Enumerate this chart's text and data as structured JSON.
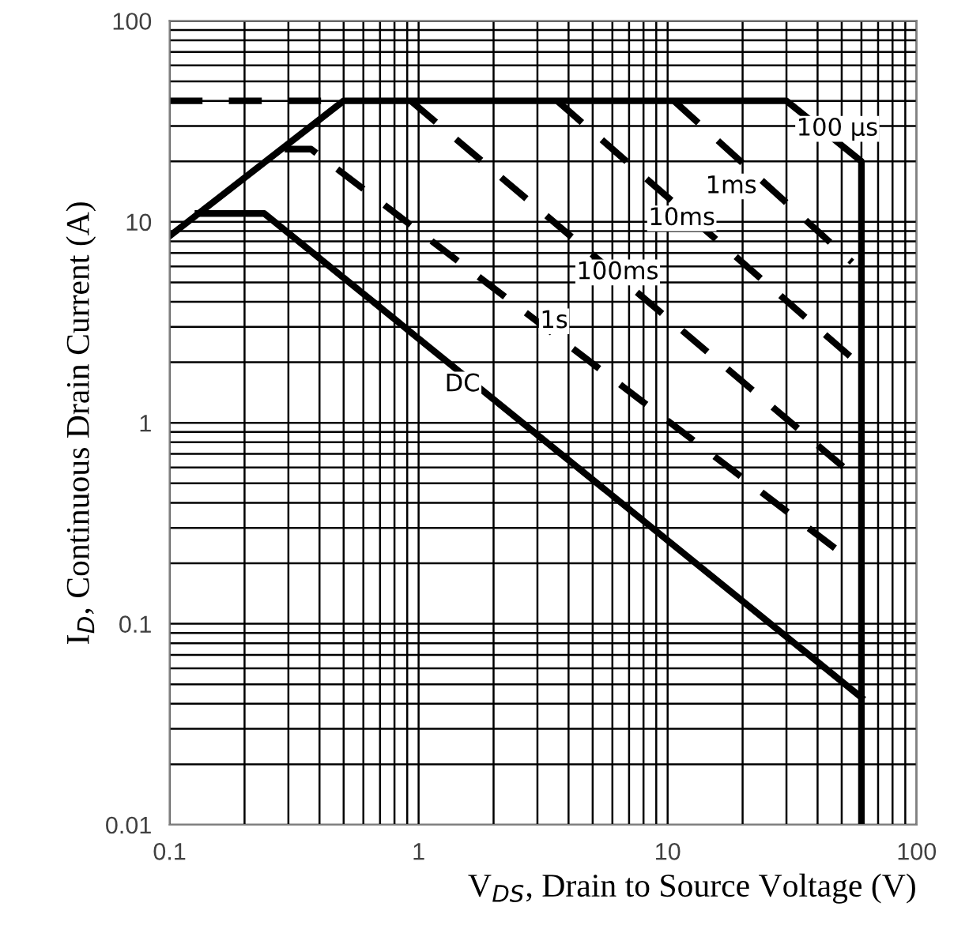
{
  "chart_data": {
    "type": "line",
    "xlabel": "V$_{DS}$, Drain to Source Voltage (V)",
    "ylabel": "I$_{D}$, Continuous Drain Current (A)",
    "log": "xy",
    "xlim": [
      0.1,
      100
    ],
    "ylim": [
      0.01,
      100
    ],
    "xticks": [
      0.1,
      1,
      10,
      100
    ],
    "yticks": [
      0.01,
      0.1,
      1,
      10,
      100
    ],
    "grid": true,
    "marker": "none",
    "series": [
      {
        "color": "#000000",
        "line_style": "solid",
        "x": [
          0.1,
          0.5,
          30,
          60,
          60
        ],
        "values": [
          8.5,
          40,
          40,
          20,
          0.01
        ]
      },
      {
        "color": "#000000",
        "line_style": "dashed",
        "x": [
          0.1,
          0.5
        ],
        "values": [
          40,
          40
        ]
      },
      {
        "color": "#000000",
        "line_style": "dashed",
        "x": [
          10.6,
          55
        ],
        "values": [
          40,
          6.3
        ]
      },
      {
        "color": "#000000",
        "line_style": "dashed",
        "x": [
          3.6,
          55
        ],
        "values": [
          40,
          2.1
        ]
      },
      {
        "color": "#000000",
        "line_style": "dashed",
        "x": [
          0.93,
          51
        ],
        "values": [
          40,
          0.6
        ]
      },
      {
        "color": "#000000",
        "line_style": "dashed",
        "x": [
          0.29,
          0.37,
          51
        ],
        "values": [
          23,
          23,
          0.22
        ]
      },
      {
        "color": "#000000",
        "line_style": "solid",
        "x": [
          0.13,
          0.24,
          60
        ],
        "values": [
          11,
          11,
          0.043
        ]
      }
    ],
    "annotations": [
      {
        "text": "100 µs",
        "x": 48,
        "y": 29
      },
      {
        "text": "1ms",
        "x": 18,
        "y": 15
      },
      {
        "text": "10ms",
        "x": 11.4,
        "y": 10.4
      },
      {
        "text": "100ms",
        "x": 6.3,
        "y": 5.6
      },
      {
        "text": "1s",
        "x": 3.5,
        "y": 3.2
      },
      {
        "text": "DC",
        "x": 1.5,
        "y": 1.55
      }
    ]
  }
}
